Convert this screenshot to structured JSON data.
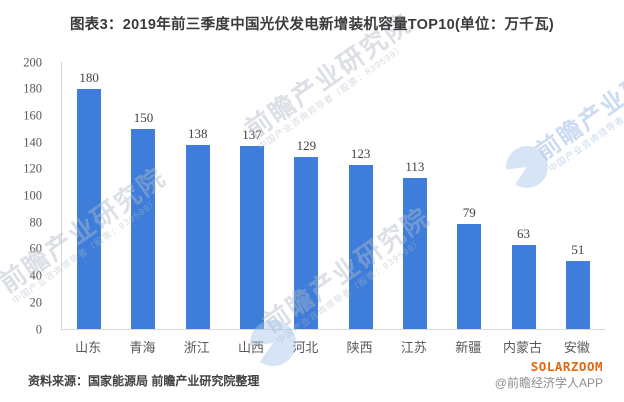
{
  "title": "图表3：2019年前三季度中国光伏发电新增装机容量TOP10(单位：万千瓦)",
  "chart_data": {
    "type": "bar",
    "title": "2019年前三季度中国光伏发电新增装机容量TOP10",
    "unit": "万千瓦",
    "categories": [
      "山东",
      "青海",
      "浙江",
      "山西",
      "河北",
      "陕西",
      "江苏",
      "新疆",
      "内蒙古",
      "安徽"
    ],
    "values": [
      180,
      150,
      138,
      137,
      129,
      123,
      113,
      79,
      63,
      51
    ],
    "xlabel": "",
    "ylabel": "",
    "ylim": [
      0,
      200
    ],
    "ytick_step": 20,
    "grid": false,
    "legend": "none",
    "bar_color": "#3E7EDA"
  },
  "footer": {
    "source": "资料来源：国家能源局 前瞻产业研究院整理",
    "brand": "SOLARZOOM",
    "credit": "@前瞻经济学人APP"
  },
  "watermark": {
    "text": "前瞻产业研究院",
    "subtext": "中国产业咨询领导者（股票：839599）"
  },
  "colors": {
    "bar": "#3E7EDA",
    "brand_orange": "#E8650F",
    "axis_line": "#D9D9D9",
    "title_text": "#3A3A3A",
    "chart_text": "#404040",
    "tick_text": "#595959",
    "credit_gray": "#8E8E8E"
  }
}
